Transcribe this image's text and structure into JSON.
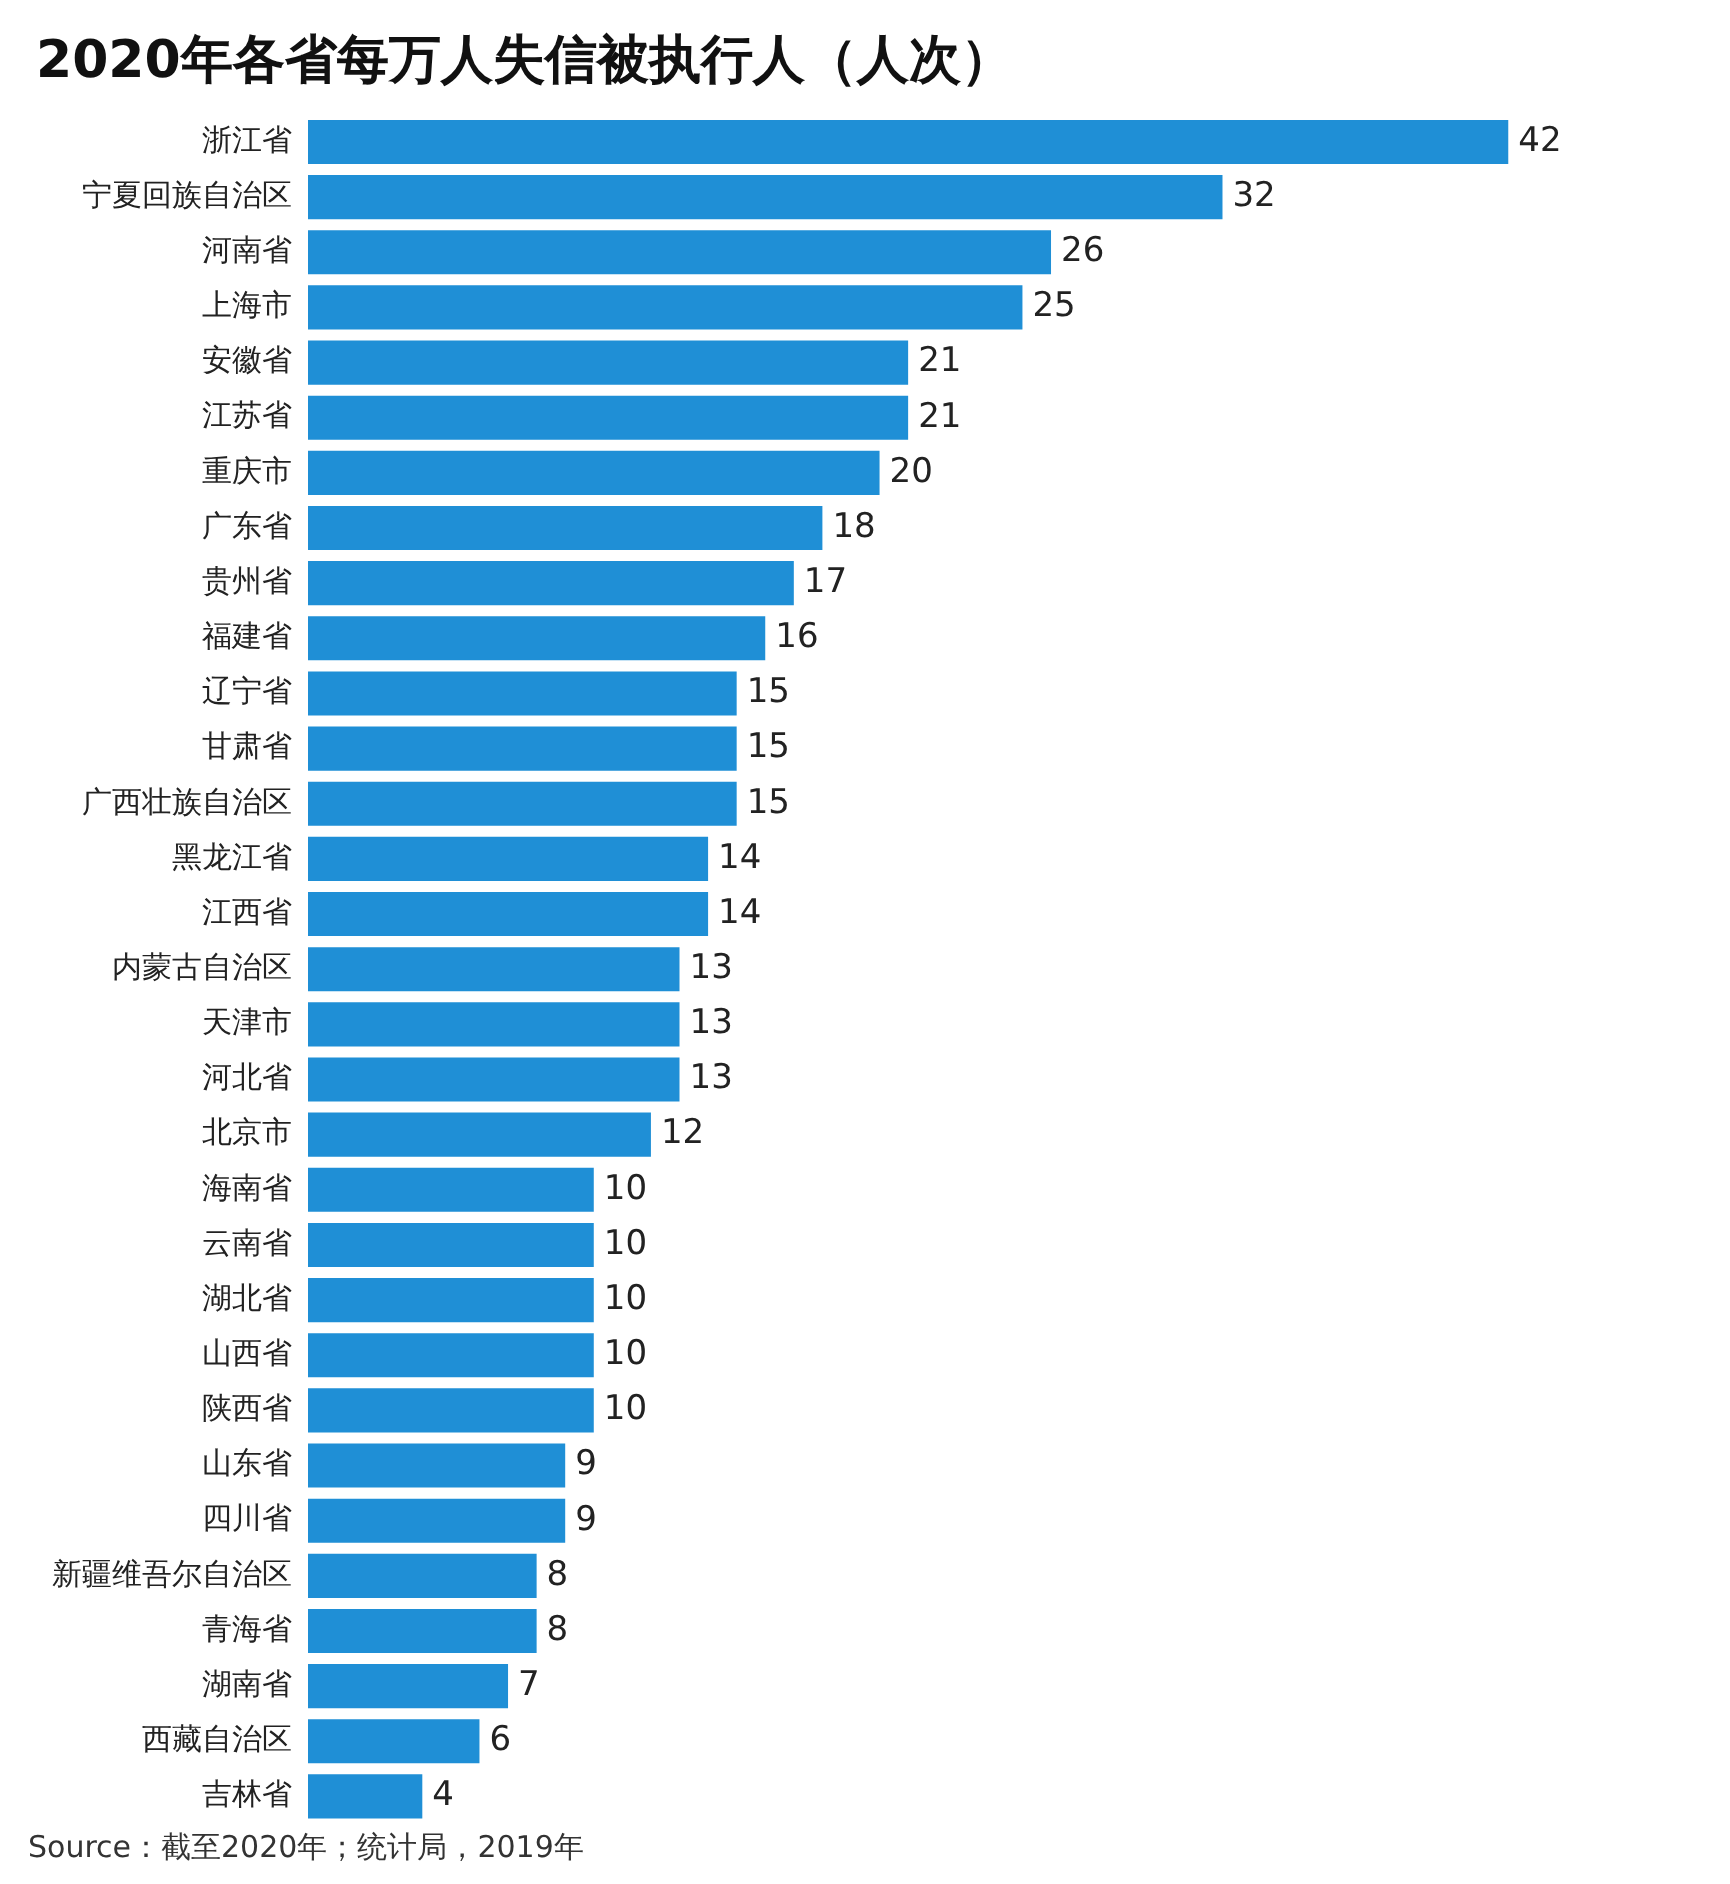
{
  "chart_data": {
    "type": "bar",
    "orientation": "horizontal",
    "title": "2020年各省每万人失信被执行人（人次）",
    "categories": [
      "浙江省",
      "宁夏回族自治区",
      "河南省",
      "上海市",
      "安徽省",
      "江苏省",
      "重庆市",
      "广东省",
      "贵州省",
      "福建省",
      "辽宁省",
      "甘肃省",
      "广西壮族自治区",
      "黑龙江省",
      "江西省",
      "内蒙古自治区",
      "天津市",
      "河北省",
      "北京市",
      "海南省",
      "云南省",
      "湖北省",
      "山西省",
      "陕西省",
      "山东省",
      "四川省",
      "新疆维吾尔自治区",
      "青海省",
      "湖南省",
      "西藏自治区",
      "吉林省"
    ],
    "values": [
      42,
      32,
      26,
      25,
      21,
      21,
      20,
      18,
      17,
      16,
      15,
      15,
      15,
      14,
      14,
      13,
      13,
      13,
      12,
      10,
      10,
      10,
      10,
      10,
      9,
      9,
      8,
      8,
      7,
      6,
      4
    ],
    "color": "#1f8fd6",
    "data_labels": true,
    "grid": false,
    "legend": false,
    "tick_labels": "y",
    "annotations": [
      "Source：截至2020年；统计局，2019年"
    ]
  }
}
